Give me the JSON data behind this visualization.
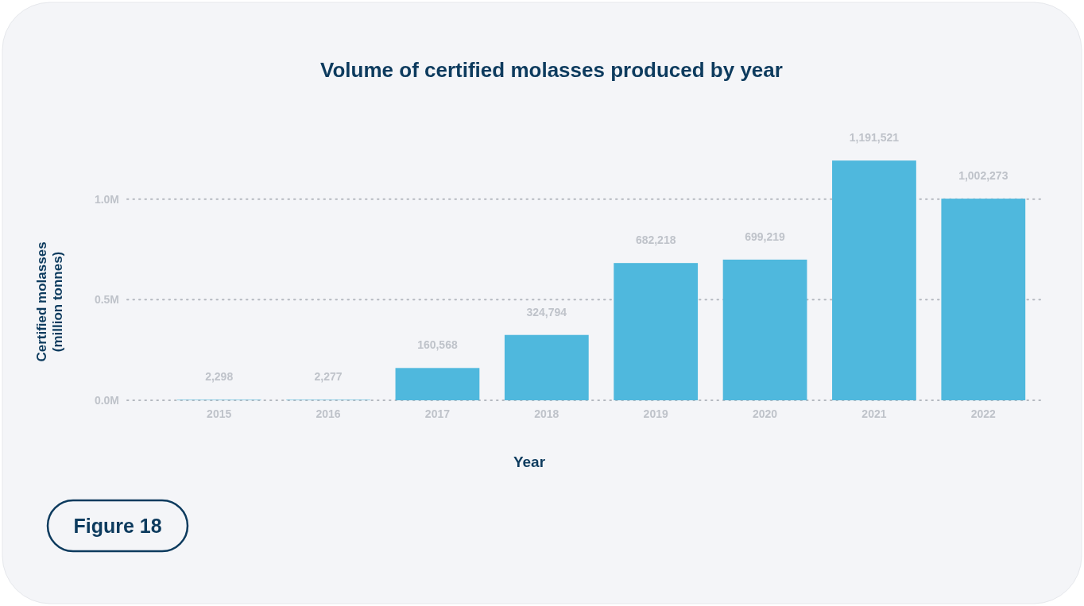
{
  "chart_data": {
    "type": "bar",
    "title": "Volume of certified molasses produced by year",
    "xlabel": "Year",
    "ylabel": "Certified molasses\n(million tonnes)",
    "categories": [
      "2015",
      "2016",
      "2017",
      "2018",
      "2019",
      "2020",
      "2021",
      "2022"
    ],
    "values": [
      2298,
      2277,
      160568,
      324794,
      682218,
      699219,
      1191521,
      1002273
    ],
    "color": "#4fb8dd",
    "ylim": [
      0,
      1200000
    ],
    "yticks": [
      {
        "value": 0,
        "label": "0.0M"
      },
      {
        "value": 500000,
        "label": "0.5M"
      },
      {
        "value": 1000000,
        "label": "1.0M"
      }
    ],
    "value_labels": [
      "2,298",
      "2,277",
      "160,568",
      "324,794",
      "682,218",
      "699,219",
      "1,191,521",
      "1,002,273"
    ],
    "grid": "y",
    "annotations": [
      "Figure 18"
    ]
  }
}
